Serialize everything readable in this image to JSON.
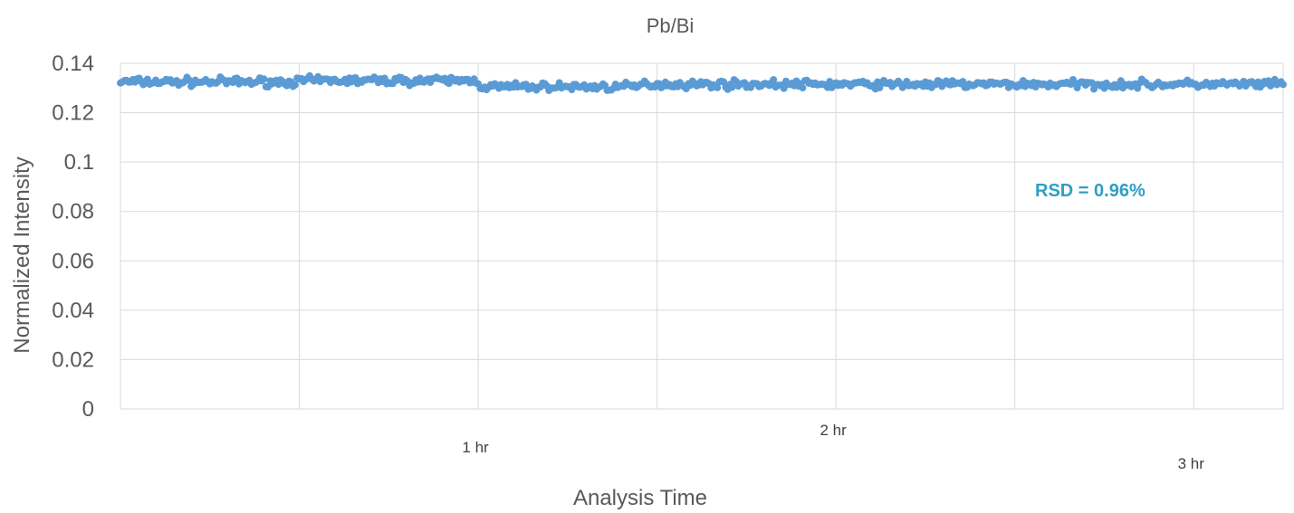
{
  "chart_data": {
    "type": "scatter",
    "title": "Pb/Bi",
    "xlabel": "Analysis Time",
    "ylabel": "Normalized Intensity",
    "ylim": [
      0,
      0.14
    ],
    "y_ticks": [
      "0",
      "0.02",
      "0.04",
      "0.06",
      "0.08",
      "0.1",
      "0.12",
      "0.14"
    ],
    "x_ticks": [
      "1 hr",
      "2 hr",
      "3 hr"
    ],
    "xlim_hours": [
      0,
      3.25
    ],
    "grid": true,
    "annotation": "RSD = 0.96%",
    "annotation_color": "#2e9fc4",
    "series": [
      {
        "color": "#5b9bd5",
        "x_hours_range": [
          0,
          3.25
        ],
        "y_mean": 0.132,
        "y_min": 0.129,
        "y_max": 0.135,
        "segments": [
          {
            "x_hours": [
              0.0,
              0.5
            ],
            "y_mean": 0.1325
          },
          {
            "x_hours": [
              0.5,
              1.0
            ],
            "y_mean": 0.133
          },
          {
            "x_hours": [
              1.0,
              1.45
            ],
            "y_mean": 0.1305
          },
          {
            "x_hours": [
              1.45,
              2.0
            ],
            "y_mean": 0.1315
          },
          {
            "x_hours": [
              2.0,
              2.5
            ],
            "y_mean": 0.1315
          },
          {
            "x_hours": [
              2.5,
              3.25
            ],
            "y_mean": 0.1315
          }
        ]
      }
    ],
    "colors": {
      "series": "#5b9bd5",
      "grid": "#d9d9d9",
      "text": "#595959"
    }
  }
}
